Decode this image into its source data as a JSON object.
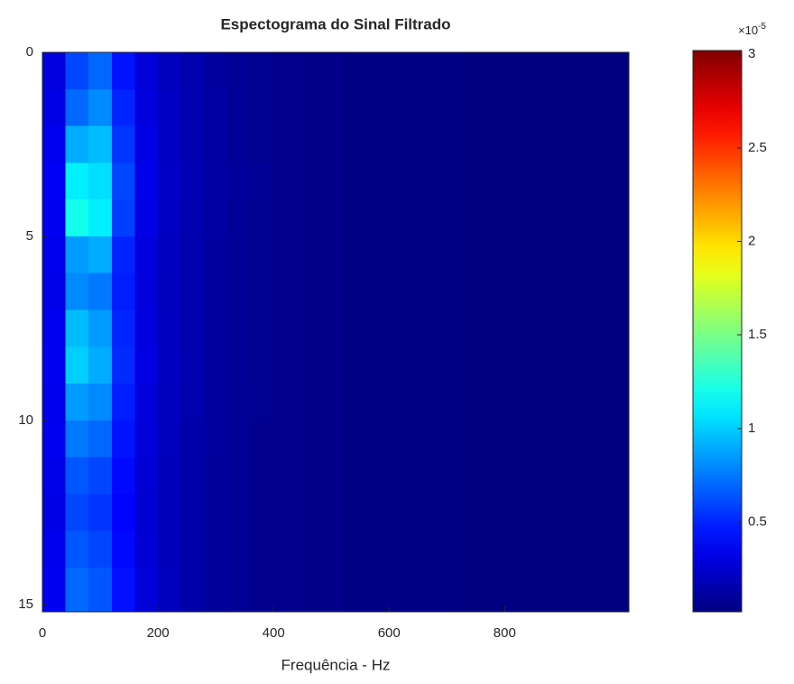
{
  "chart_data": {
    "type": "heatmap",
    "title": "Espectograma do Sinal Filtrado",
    "x_label": "Frequência - Hz",
    "x": [
      20,
      60,
      100,
      140,
      180,
      220,
      260,
      300,
      340,
      380,
      420,
      460,
      500,
      540,
      580,
      620,
      660,
      700,
      740,
      780,
      820,
      860,
      900,
      940,
      980
    ],
    "y": [
      0.5,
      1.5,
      2.5,
      3.5,
      4.5,
      5.5,
      6.5,
      7.5,
      8.5,
      9.5,
      10.5,
      11.5,
      12.5,
      13.5,
      14.5
    ],
    "z": [
      [
        0.3,
        0.6,
        0.7,
        0.45,
        0.28,
        0.2,
        0.15,
        0.11,
        0.09,
        0.07,
        0.06,
        0.05,
        0.05,
        0.04,
        0.04,
        0.04,
        0.04,
        0.04,
        0.03,
        0.03,
        0.03,
        0.03,
        0.03,
        0.03,
        0.03
      ],
      [
        0.32,
        0.7,
        0.8,
        0.5,
        0.3,
        0.22,
        0.16,
        0.12,
        0.09,
        0.07,
        0.06,
        0.05,
        0.05,
        0.04,
        0.04,
        0.04,
        0.04,
        0.04,
        0.03,
        0.03,
        0.03,
        0.03,
        0.03,
        0.03,
        0.03
      ],
      [
        0.35,
        0.9,
        0.95,
        0.55,
        0.32,
        0.22,
        0.16,
        0.12,
        0.09,
        0.07,
        0.06,
        0.05,
        0.05,
        0.04,
        0.04,
        0.04,
        0.04,
        0.04,
        0.03,
        0.03,
        0.03,
        0.03,
        0.03,
        0.03,
        0.03
      ],
      [
        0.38,
        1.1,
        1.05,
        0.6,
        0.33,
        0.23,
        0.17,
        0.12,
        0.1,
        0.08,
        0.06,
        0.05,
        0.05,
        0.04,
        0.04,
        0.04,
        0.04,
        0.04,
        0.03,
        0.03,
        0.03,
        0.03,
        0.03,
        0.03,
        0.03
      ],
      [
        0.36,
        1.2,
        1.1,
        0.58,
        0.32,
        0.22,
        0.16,
        0.12,
        0.09,
        0.07,
        0.06,
        0.05,
        0.05,
        0.04,
        0.04,
        0.04,
        0.04,
        0.04,
        0.03,
        0.03,
        0.03,
        0.03,
        0.03,
        0.03,
        0.03
      ],
      [
        0.34,
        0.85,
        0.9,
        0.5,
        0.3,
        0.21,
        0.15,
        0.11,
        0.09,
        0.07,
        0.06,
        0.05,
        0.05,
        0.04,
        0.04,
        0.04,
        0.04,
        0.04,
        0.03,
        0.03,
        0.03,
        0.03,
        0.03,
        0.03,
        0.03
      ],
      [
        0.33,
        0.8,
        0.75,
        0.48,
        0.29,
        0.2,
        0.15,
        0.11,
        0.09,
        0.07,
        0.06,
        0.05,
        0.05,
        0.04,
        0.04,
        0.04,
        0.04,
        0.04,
        0.03,
        0.03,
        0.03,
        0.03,
        0.03,
        0.03,
        0.03
      ],
      [
        0.35,
        0.95,
        0.85,
        0.5,
        0.3,
        0.21,
        0.15,
        0.11,
        0.09,
        0.07,
        0.06,
        0.05,
        0.05,
        0.04,
        0.04,
        0.04,
        0.04,
        0.04,
        0.03,
        0.03,
        0.03,
        0.03,
        0.03,
        0.03,
        0.03
      ],
      [
        0.36,
        1.0,
        0.9,
        0.52,
        0.31,
        0.21,
        0.16,
        0.11,
        0.09,
        0.07,
        0.06,
        0.05,
        0.05,
        0.04,
        0.04,
        0.04,
        0.04,
        0.04,
        0.03,
        0.03,
        0.03,
        0.03,
        0.03,
        0.03,
        0.03
      ],
      [
        0.34,
        0.85,
        0.8,
        0.48,
        0.29,
        0.2,
        0.15,
        0.11,
        0.08,
        0.07,
        0.06,
        0.05,
        0.05,
        0.04,
        0.04,
        0.04,
        0.04,
        0.04,
        0.03,
        0.03,
        0.03,
        0.03,
        0.03,
        0.03,
        0.03
      ],
      [
        0.35,
        0.75,
        0.7,
        0.45,
        0.28,
        0.2,
        0.14,
        0.11,
        0.08,
        0.06,
        0.06,
        0.05,
        0.05,
        0.04,
        0.04,
        0.04,
        0.04,
        0.04,
        0.03,
        0.03,
        0.03,
        0.03,
        0.03,
        0.03,
        0.03
      ],
      [
        0.33,
        0.65,
        0.6,
        0.42,
        0.27,
        0.19,
        0.14,
        0.1,
        0.08,
        0.06,
        0.06,
        0.05,
        0.05,
        0.04,
        0.04,
        0.04,
        0.04,
        0.04,
        0.03,
        0.03,
        0.03,
        0.03,
        0.03,
        0.03,
        0.03
      ],
      [
        0.32,
        0.6,
        0.55,
        0.4,
        0.26,
        0.19,
        0.14,
        0.1,
        0.08,
        0.06,
        0.06,
        0.05,
        0.05,
        0.04,
        0.04,
        0.04,
        0.04,
        0.04,
        0.03,
        0.03,
        0.03,
        0.03,
        0.03,
        0.03,
        0.03
      ],
      [
        0.34,
        0.65,
        0.6,
        0.42,
        0.27,
        0.19,
        0.14,
        0.1,
        0.08,
        0.06,
        0.06,
        0.05,
        0.05,
        0.04,
        0.04,
        0.04,
        0.04,
        0.04,
        0.03,
        0.03,
        0.03,
        0.03,
        0.03,
        0.03,
        0.03
      ],
      [
        0.36,
        0.7,
        0.65,
        0.44,
        0.28,
        0.2,
        0.14,
        0.1,
        0.08,
        0.06,
        0.06,
        0.05,
        0.05,
        0.04,
        0.04,
        0.04,
        0.04,
        0.04,
        0.03,
        0.03,
        0.03,
        0.03,
        0.03,
        0.03,
        0.03
      ]
    ],
    "xlim": [
      0,
      1015
    ],
    "xticks": [
      0,
      200,
      400,
      600,
      800
    ],
    "ylim": [
      0,
      15.2
    ],
    "yticks": [
      0,
      5,
      10,
      15
    ],
    "y_reversed": true,
    "colormap": "jet",
    "clim": [
      0.02,
      3.02
    ],
    "colorbar_ticks": [
      0.5,
      1,
      1.5,
      2,
      2.5,
      3
    ],
    "colorbar_multiplier": {
      "base": "×10",
      "exponent": "-5"
    }
  }
}
